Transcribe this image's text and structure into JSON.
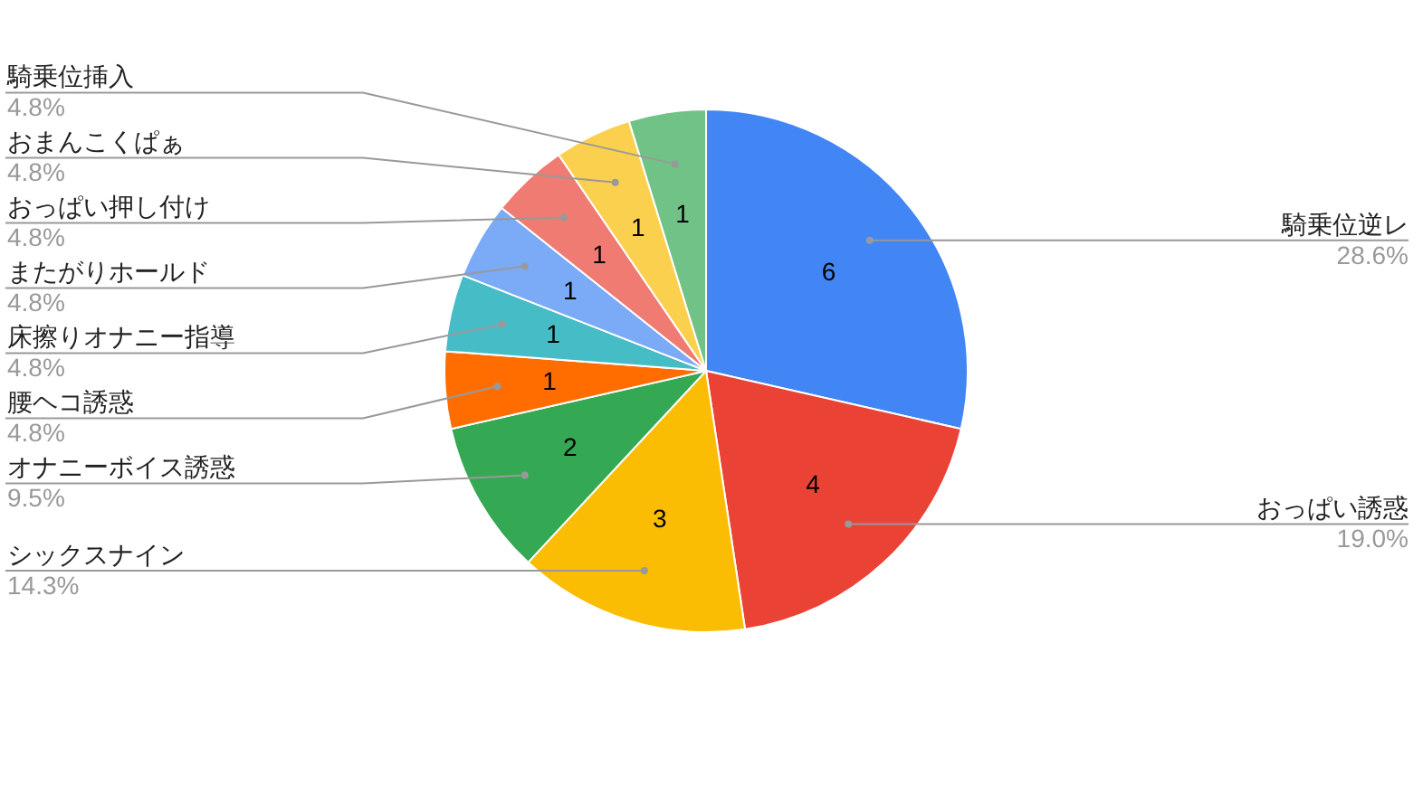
{
  "chart_data": {
    "type": "pie",
    "categories": [
      "騎乗位逆レ",
      "おっぱい誘惑",
      "シックスナイン",
      "オナニーボイス誘惑",
      "腰ヘコ誘惑",
      "床擦りオナニー指導",
      "またがりホールド",
      "おっぱい押し付け",
      "おまんこくぱぁ",
      "騎乗位挿入"
    ],
    "values": [
      6,
      4,
      3,
      2,
      1,
      1,
      1,
      1,
      1,
      1
    ],
    "colors": [
      "#4285f4",
      "#ea4335",
      "#fbbc04",
      "#34a853",
      "#ff6d01",
      "#46bdc6",
      "#7baaf7",
      "#f07b72",
      "#fcd04f",
      "#71c287"
    ],
    "data_labels": true,
    "annotations": [
      {
        "text": "28.6%",
        "x": "騎乗位逆レ"
      },
      {
        "text": "19.0%",
        "x": "おっぱい誘惑"
      },
      {
        "text": "14.3%",
        "x": "シックスナイン"
      },
      {
        "text": "9.5%",
        "x": "オナニーボイス誘惑"
      },
      {
        "text": "4.8%",
        "x": "腰ヘコ誘惑"
      },
      {
        "text": "4.8%",
        "x": "床擦りオナニー指導"
      },
      {
        "text": "4.8%",
        "x": "またがりホールド"
      },
      {
        "text": "4.8%",
        "x": "おっぱい押し付け"
      },
      {
        "text": "4.8%",
        "x": "おまんこくぱぁ"
      },
      {
        "text": "4.8%",
        "x": "騎乗位挿入"
      }
    ]
  }
}
